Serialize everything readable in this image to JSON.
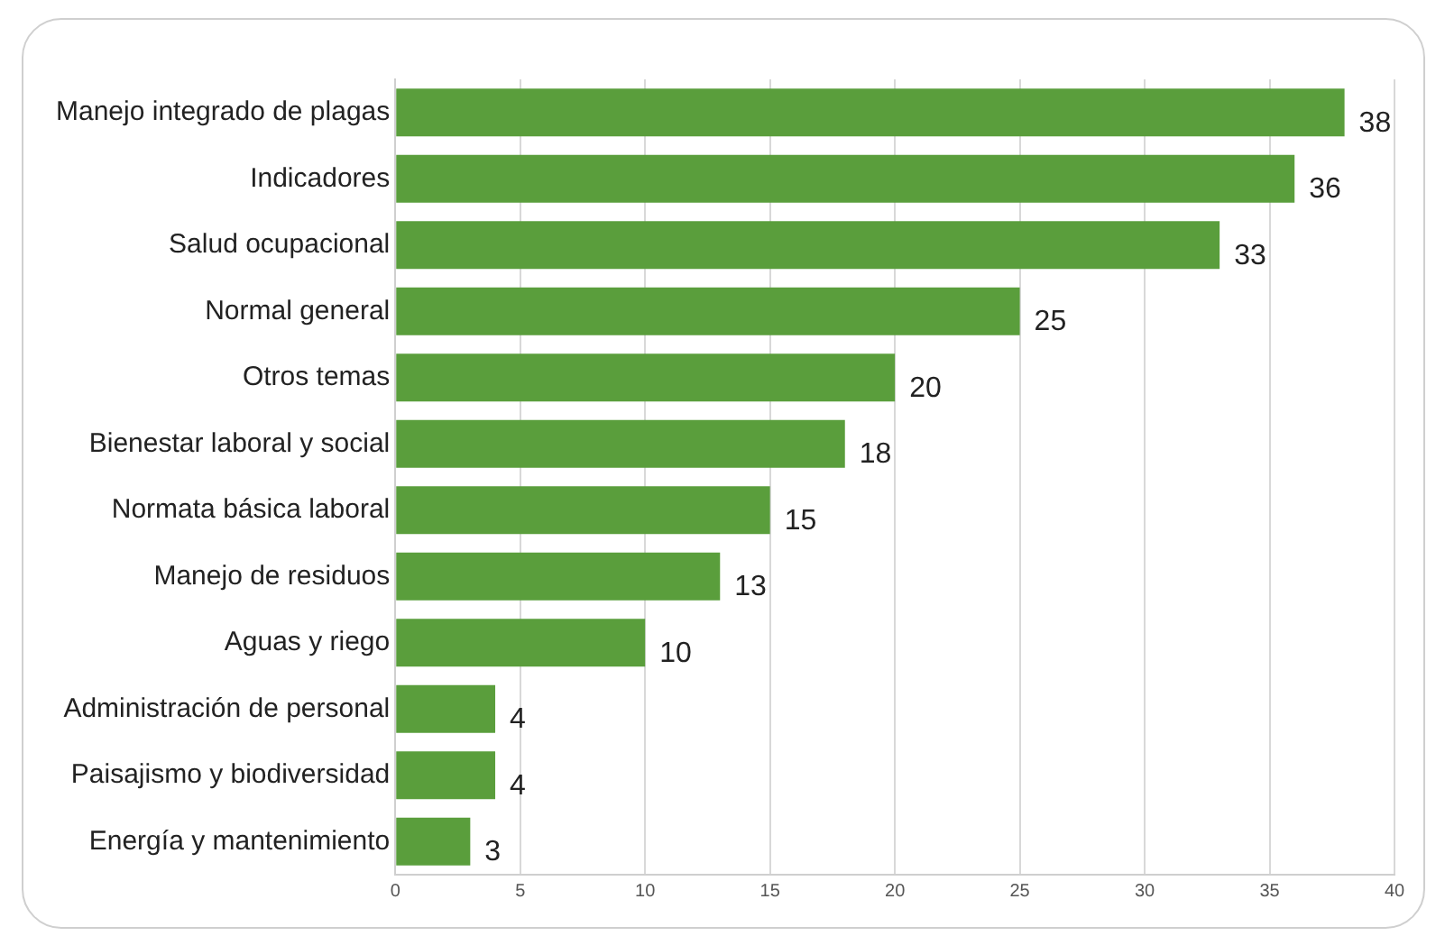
{
  "chart_data": {
    "type": "bar",
    "orientation": "horizontal",
    "categories": [
      "Manejo integrado de plagas",
      "Indicadores",
      "Salud ocupacional",
      "Normal general",
      "Otros temas",
      "Bienestar laboral y social",
      "Normata básica laboral",
      "Manejo de residuos",
      "Aguas y riego",
      "Administración de personal",
      "Paisajismo y biodiversidad",
      "Energía y mantenimiento"
    ],
    "values": [
      38,
      36,
      33,
      25,
      20,
      18,
      15,
      13,
      10,
      4,
      4,
      3
    ],
    "color": "#5a9e3c",
    "xlim": [
      0,
      40
    ],
    "xticks": [
      0,
      5,
      10,
      15,
      20,
      25,
      30,
      35,
      40
    ],
    "grid": "x",
    "data_labels": true
  }
}
